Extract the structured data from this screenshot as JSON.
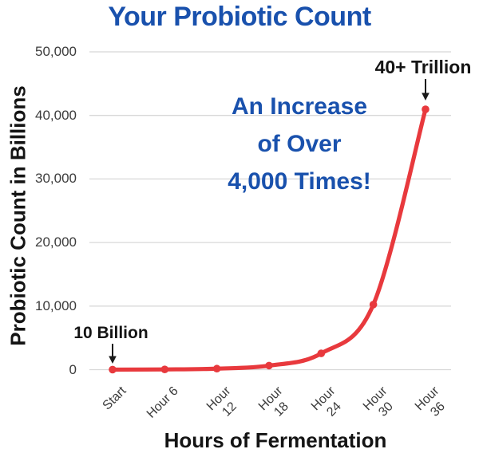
{
  "colors": {
    "title_blue": "#1951ad",
    "callout_blue": "#1951ad",
    "line_red": "#e8393d",
    "grid_gray": "#d8d8d8",
    "text_black": "#141414",
    "tick_gray": "#3c3c3c"
  },
  "chart_data": {
    "type": "line",
    "title": "Your Probiotic Count",
    "xlabel": "Hours of Fermentation",
    "ylabel": "Probiotic Count in Billions",
    "categories": [
      "Start",
      "Hour 6",
      "Hour 12",
      "Hour 18",
      "Hour 24",
      "Hour 30",
      "Hour 36"
    ],
    "xtick_display": [
      "Start",
      "Hour 6",
      "Hour\n12",
      "Hour\n18",
      "Hour\n24",
      "Hour\n30",
      "Hour\n36"
    ],
    "values": [
      10,
      40,
      160,
      640,
      2560,
      10240,
      40960
    ],
    "unit": "billions",
    "ylim": [
      0,
      50000
    ],
    "yticks": [
      0,
      10000,
      20000,
      30000,
      40000,
      50000
    ],
    "ytick_labels": [
      "0",
      "10,000",
      "20,000",
      "30,000",
      "40,000",
      "50,000"
    ],
    "grid": true,
    "legend": false,
    "line_color": "#e8393d",
    "marker": "circle",
    "annotations": [
      {
        "text": "10 Billion",
        "points_to": "Start"
      },
      {
        "text": "40+ Trillion",
        "points_to": "Hour 36"
      }
    ],
    "callout_lines": [
      "An Increase",
      "of Over",
      "4,000 Times!"
    ]
  }
}
